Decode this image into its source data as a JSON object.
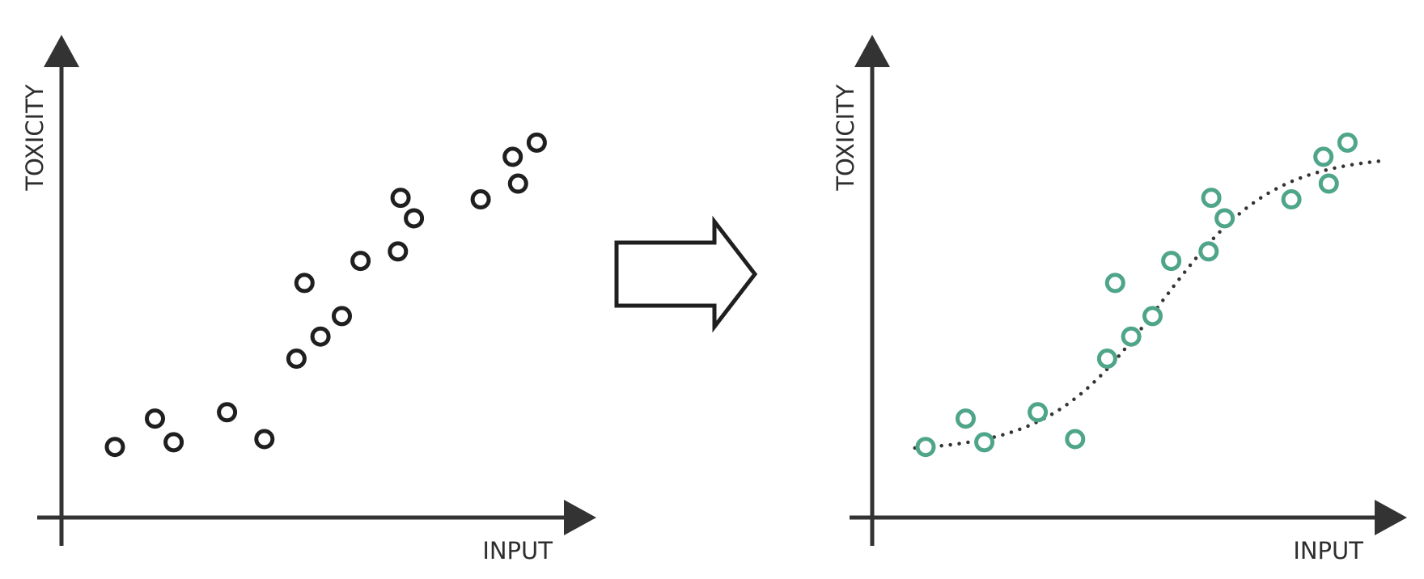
{
  "left_panel": {
    "x_label": "INPUT",
    "y_label": "TOXICITY",
    "point_color": "#1f1f1f"
  },
  "right_panel": {
    "x_label": "INPUT",
    "y_label": "TOXICITY",
    "point_color": "#4ea58a",
    "curve_color": "#333333"
  },
  "arrow_icon": "right-arrow-icon",
  "axis_color": "#333333",
  "points": [
    [
      1.0,
      0.7
    ],
    [
      1.75,
      1.6
    ],
    [
      2.1,
      0.85
    ],
    [
      3.1,
      1.8
    ],
    [
      3.8,
      0.95
    ],
    [
      4.4,
      3.5
    ],
    [
      4.55,
      5.9
    ],
    [
      4.85,
      4.2
    ],
    [
      5.25,
      4.85
    ],
    [
      5.6,
      6.6
    ],
    [
      6.3,
      6.9
    ],
    [
      6.35,
      8.6
    ],
    [
      6.6,
      7.95
    ],
    [
      7.85,
      8.55
    ],
    [
      8.45,
      9.9
    ],
    [
      8.55,
      9.05
    ],
    [
      8.9,
      10.35
    ]
  ]
}
